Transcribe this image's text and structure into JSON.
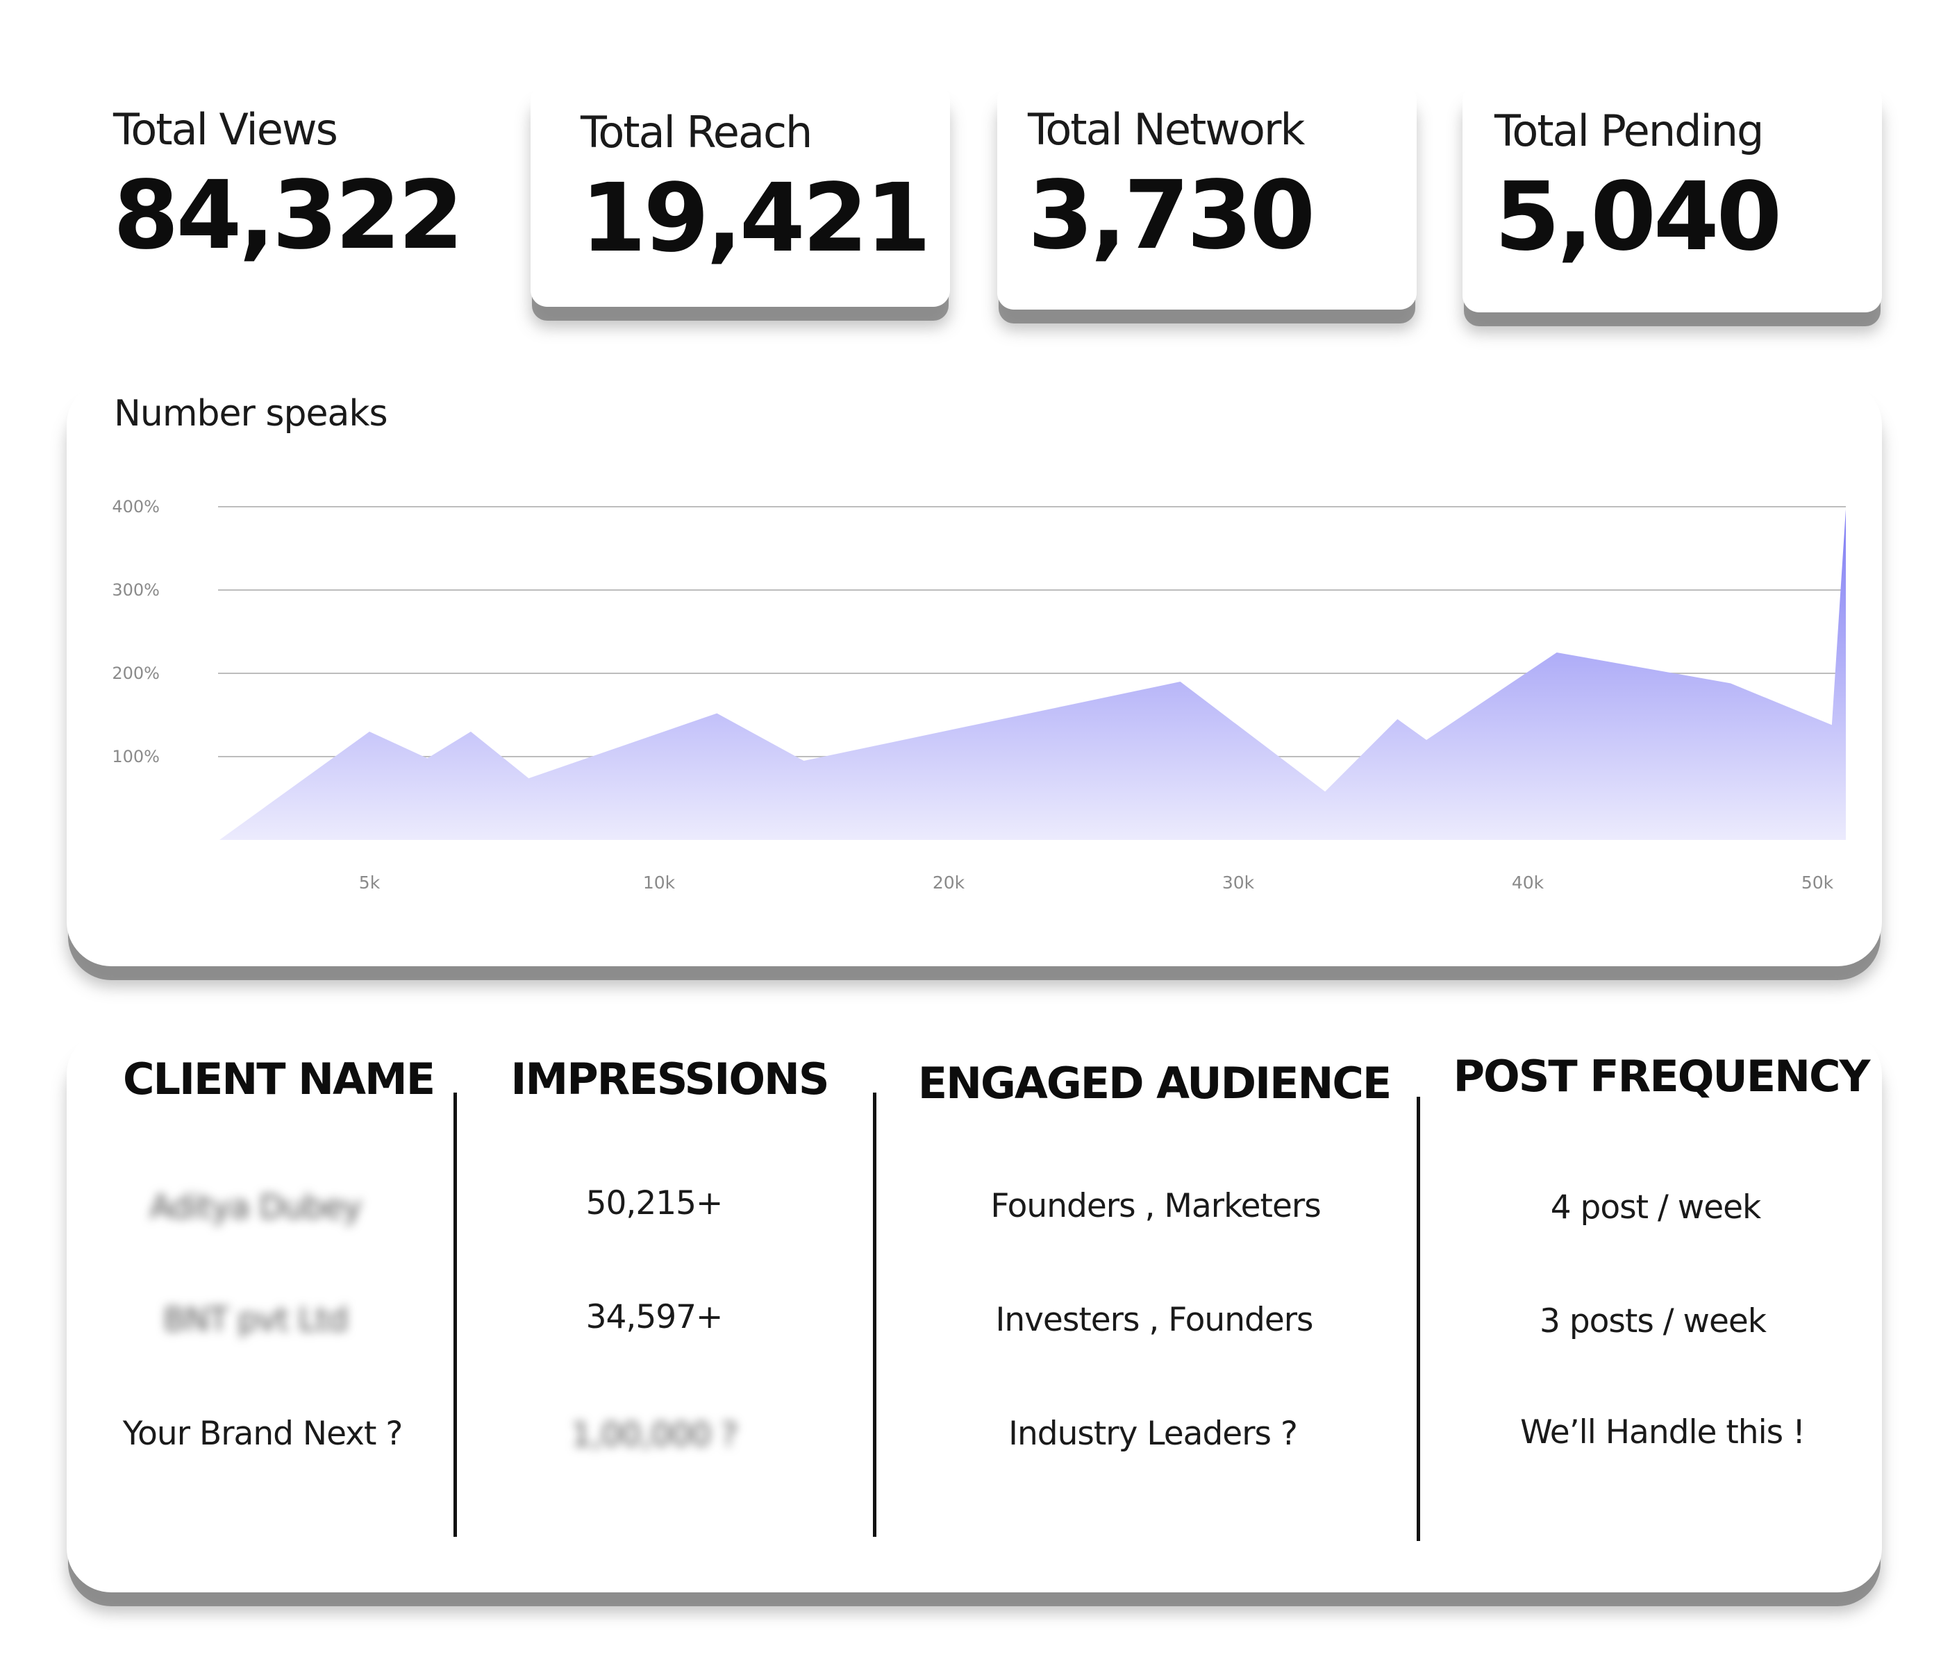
{
  "stats": [
    {
      "label": "Total Views",
      "value": "84,322"
    },
    {
      "label": "Total Reach",
      "value": "19,421"
    },
    {
      "label": "Total Network",
      "value": "3,730"
    },
    {
      "label": "Total Pending",
      "value": "5,040"
    }
  ],
  "chart_data": {
    "type": "area",
    "title": "Number speaks",
    "xlabel": "",
    "ylabel": "",
    "x_ticks": [
      "5k",
      "10k",
      "20k",
      "30k",
      "40k",
      "50k"
    ],
    "y_ticks": [
      "100%",
      "200%",
      "300%",
      "400%"
    ],
    "ylim": [
      0,
      400
    ],
    "grid": true,
    "fill_color_top": "#7f7cf3",
    "fill_color_bottom": "#ecebfd",
    "series": [
      {
        "x": [
          0,
          0.5,
          0.7,
          0.85,
          1.05,
          1.7,
          2.0,
          3.3,
          3.8,
          4.05,
          4.15,
          4.6,
          5.2,
          5.55,
          5.7
        ],
        "y": [
          0,
          130,
          98,
          130,
          74,
          152,
          95,
          190,
          58,
          145,
          120,
          225,
          188,
          138,
          397
        ]
      }
    ]
  },
  "table": {
    "headers": [
      "CLIENT NAME",
      "IMPRESSIONS",
      "ENGAGED AUDIENCE",
      "POST FREQUENCY"
    ],
    "rows": [
      [
        "Aditya Dubey",
        "50,215+",
        "Founders , Marketers",
        "4 post / week"
      ],
      [
        "BNT pvt Ltd",
        "34,597+",
        "Investers , Founders",
        "3 posts / week"
      ],
      [
        "Your Brand Next ?",
        "1,00,000 ?",
        "Industry Leaders ?",
        "We’ll Handle this !"
      ]
    ]
  }
}
